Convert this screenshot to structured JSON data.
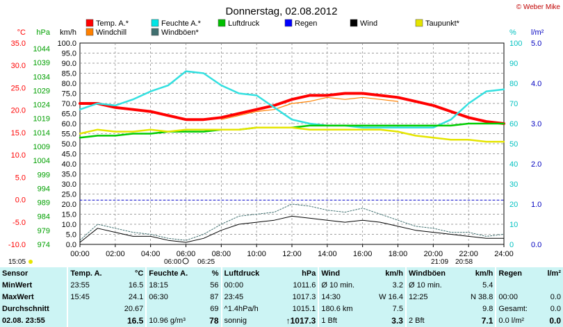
{
  "header": {
    "title": "Donnerstag, 02.08.2012",
    "copyright": "© Weber Mike"
  },
  "legend": [
    {
      "label": "Temp. A.*",
      "color": "#ff0000"
    },
    {
      "label": "Feuchte A.*",
      "color": "#00e5e5"
    },
    {
      "label": "Luftdruck",
      "color": "#00c000"
    },
    {
      "label": "Regen",
      "color": "#0000ff"
    },
    {
      "label": "Wind",
      "color": "#000000"
    },
    {
      "label": "Taupunkt*",
      "color": "#e5e500"
    },
    {
      "label": "Windchill",
      "color": "#ff8000"
    },
    {
      "label": "Windböen*",
      "color": "#407070"
    }
  ],
  "chart_data": {
    "type": "line",
    "axes": {
      "temp_c": {
        "label": "°C",
        "ticks": [
          "35.0",
          "30.0",
          "25.0",
          "20.0",
          "15.0",
          "10.0",
          "5.0",
          "0.0",
          "-5.0",
          "-10.0"
        ],
        "range": [
          -10,
          35
        ],
        "color": "#ff0000"
      },
      "pressure_hpa": {
        "label": "hPa",
        "ticks": [
          "1044",
          "1039",
          "1034",
          "1029",
          "1024",
          "1019",
          "1014",
          "1009",
          "1004",
          "999",
          "994",
          "989",
          "984",
          "979",
          "974"
        ],
        "range": [
          974,
          1044
        ],
        "color": "#00a000"
      },
      "wind_kmh": {
        "label": "km/h",
        "ticks": [
          "100.0",
          "95.0",
          "90.0",
          "85.0",
          "80.0",
          "75.0",
          "70.0",
          "65.0",
          "60.0",
          "55.0",
          "50.0",
          "45.0",
          "40.0",
          "35.0",
          "30.0",
          "25.0",
          "20.0",
          "15.0",
          "10.0",
          "5.0",
          "0.0"
        ],
        "range": [
          0,
          100
        ],
        "color": "#000000"
      },
      "humidity_pct": {
        "label": "%",
        "ticks": [
          "100",
          "90",
          "80",
          "70",
          "60",
          "50",
          "40",
          "30",
          "20",
          "10",
          "0"
        ],
        "range": [
          0,
          100
        ],
        "color": "#00c0c0"
      },
      "rain_lm2": {
        "label": "l/m²",
        "ticks": [
          "5.0",
          "4.0",
          "3.0",
          "2.0",
          "1.0",
          "0.0"
        ],
        "range": [
          0,
          5
        ],
        "color": "#0000c0"
      }
    },
    "x_ticks": [
      "00:00",
      "02:00",
      "04:00",
      "06:00",
      "08:00",
      "10:00",
      "12:00",
      "14:00",
      "16:00",
      "18:00",
      "20:00",
      "22:00",
      "24:00"
    ],
    "x_range_hours": [
      0,
      24
    ],
    "series": [
      {
        "name": "Temp. A.*",
        "axis": "wind_kmh",
        "x": [
          0,
          1,
          2,
          3,
          4,
          5,
          6,
          7,
          8,
          9,
          10,
          11,
          12,
          13,
          14,
          15,
          16,
          17,
          18,
          19,
          20,
          21,
          22,
          23,
          24
        ],
        "values": [
          70,
          70,
          68,
          67,
          66,
          64,
          62,
          62,
          63,
          65,
          67,
          69,
          72,
          74,
          74,
          75,
          75,
          74,
          73,
          71,
          69,
          66,
          63,
          61,
          60
        ]
      },
      {
        "name": "Windchill",
        "axis": "wind_kmh",
        "x": [
          8,
          9,
          10,
          11,
          12,
          13,
          14,
          15,
          16,
          17,
          18
        ],
        "values": [
          62,
          64,
          66,
          67,
          70,
          71,
          73,
          72,
          73,
          72,
          71
        ]
      },
      {
        "name": "Feuchte A.*",
        "axis": "wind_kmh",
        "x": [
          0,
          1,
          2,
          3,
          4,
          5,
          6,
          7,
          8,
          9,
          10,
          11,
          12,
          13,
          14,
          15,
          16,
          17,
          18,
          19,
          20,
          21,
          22,
          23,
          24
        ],
        "values": [
          67,
          70,
          69,
          72,
          76,
          79,
          86,
          85,
          79,
          75,
          74,
          68,
          62,
          60,
          59,
          59,
          58,
          58,
          58,
          58,
          58,
          62,
          70,
          76,
          77
        ]
      },
      {
        "name": "Luftdruck",
        "axis": "wind_kmh",
        "x": [
          0,
          1,
          2,
          3,
          4,
          5,
          6,
          7,
          8,
          9,
          10,
          11,
          12,
          13,
          14,
          15,
          16,
          17,
          18,
          19,
          20,
          21,
          22,
          23,
          24
        ],
        "values": [
          53,
          54,
          54,
          55,
          55,
          56,
          56,
          56,
          57,
          57,
          58,
          58,
          58,
          59,
          59,
          59,
          59,
          59,
          59,
          59,
          59,
          59,
          60,
          60,
          60
        ]
      },
      {
        "name": "Taupunkt*",
        "axis": "wind_kmh",
        "x": [
          0,
          1,
          2,
          3,
          4,
          5,
          6,
          7,
          8,
          9,
          10,
          11,
          12,
          13,
          14,
          15,
          16,
          17,
          18,
          19,
          20,
          21,
          22,
          23,
          24
        ],
        "values": [
          55,
          57,
          56,
          56,
          57,
          56,
          57,
          57,
          57,
          57,
          58,
          58,
          58,
          57,
          57,
          57,
          57,
          57,
          56,
          54,
          53,
          52,
          52,
          51,
          51
        ]
      },
      {
        "name": "Windböen*",
        "axis": "wind_kmh",
        "x": [
          0,
          1,
          2,
          3,
          4,
          5,
          6,
          7,
          8,
          9,
          10,
          11,
          12,
          13,
          14,
          15,
          16,
          17,
          18,
          19,
          20,
          21,
          22,
          23,
          24
        ],
        "values": [
          2,
          10,
          8,
          6,
          5,
          3,
          2,
          5,
          10,
          14,
          15,
          16,
          20,
          19,
          17,
          16,
          18,
          15,
          12,
          9,
          8,
          6,
          6,
          4,
          5
        ]
      },
      {
        "name": "Wind",
        "axis": "wind_kmh",
        "x": [
          0,
          1,
          2,
          3,
          4,
          5,
          6,
          7,
          8,
          9,
          10,
          11,
          12,
          13,
          14,
          15,
          16,
          17,
          18,
          19,
          20,
          21,
          22,
          23,
          24
        ],
        "values": [
          1,
          8,
          6,
          4,
          4,
          2,
          1,
          3,
          7,
          10,
          11,
          12,
          14,
          13,
          12,
          11,
          12,
          11,
          9,
          7,
          6,
          5,
          4,
          3,
          3
        ]
      },
      {
        "name": "Regen",
        "axis": "wind_kmh",
        "x": [
          0,
          24
        ],
        "values": [
          22,
          22
        ]
      }
    ]
  },
  "footer": {
    "left_time": "15:05",
    "sunrise": "06:00",
    "sunrise2": "06:25",
    "sunset": "21:09",
    "sunset2": "20:58"
  },
  "table": {
    "headers": [
      "Sensor",
      "Temp. A.",
      "°C",
      "Feuchte A.",
      "%",
      "Luftdruck",
      "hPa",
      "Wind",
      "km/h",
      "Windböen",
      "km/h",
      "Regen",
      "l/m²"
    ],
    "rows": [
      [
        "MinWert",
        "23:55",
        "16.5",
        "18:15",
        "56",
        "00:00",
        "1011.6",
        "Ø 10 min.",
        "3.2",
        "Ø 10 min.",
        "5.4",
        "",
        ""
      ],
      [
        "MaxWert",
        "15:45",
        "24.1",
        "06:30",
        "87",
        "23:45",
        "1017.3",
        "14:30",
        "W 16.4",
        "12:25",
        "N 38.8",
        "00:00",
        "0.0"
      ],
      [
        "Durchschnitt",
        "",
        "20.67",
        "",
        "69",
        "^1.4hPa/h",
        "1015.1",
        "180.6 km",
        "7.5",
        "",
        "9.8",
        "Gesamt:",
        "0.0"
      ],
      [
        "02.08. 23:55",
        "",
        "16.5",
        "10.96 g/m³",
        "78",
        "sonnig",
        "↑1017.3",
        "1 Bft",
        "3.3",
        "2 Bft",
        "7.1",
        "0.0 l/m²",
        "0.0"
      ]
    ]
  }
}
